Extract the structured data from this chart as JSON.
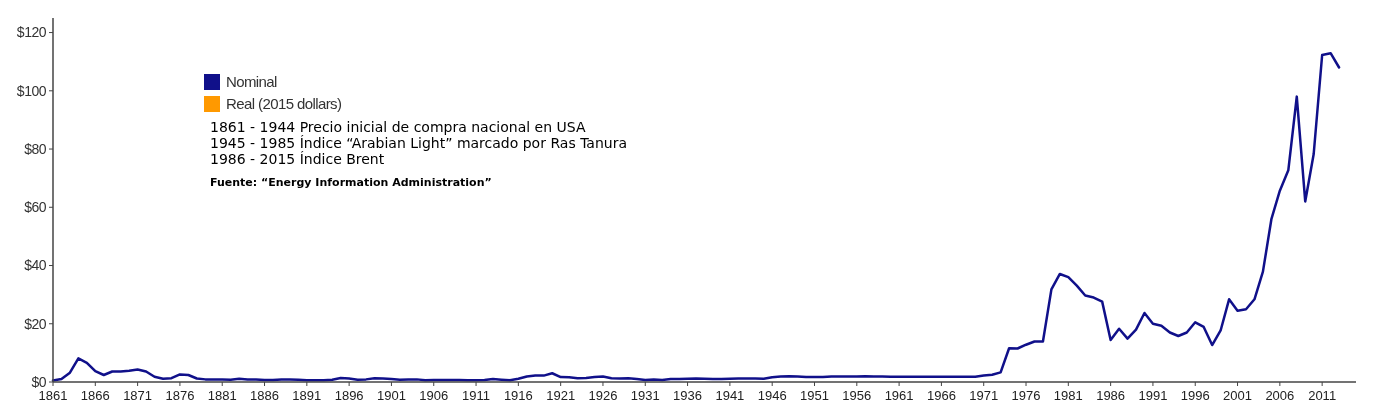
{
  "chart_data": {
    "type": "line",
    "x": [
      1861,
      1862,
      1863,
      1864,
      1865,
      1866,
      1867,
      1868,
      1869,
      1870,
      1871,
      1872,
      1873,
      1874,
      1875,
      1876,
      1877,
      1878,
      1879,
      1880,
      1881,
      1882,
      1883,
      1884,
      1885,
      1886,
      1887,
      1888,
      1889,
      1890,
      1891,
      1892,
      1893,
      1894,
      1895,
      1896,
      1897,
      1898,
      1899,
      1900,
      1901,
      1902,
      1903,
      1904,
      1905,
      1906,
      1907,
      1908,
      1909,
      1910,
      1911,
      1912,
      1913,
      1914,
      1915,
      1916,
      1917,
      1918,
      1919,
      1920,
      1921,
      1922,
      1923,
      1924,
      1925,
      1926,
      1927,
      1928,
      1929,
      1930,
      1931,
      1932,
      1933,
      1934,
      1935,
      1936,
      1937,
      1938,
      1939,
      1940,
      1941,
      1942,
      1943,
      1944,
      1945,
      1946,
      1947,
      1948,
      1949,
      1950,
      1951,
      1952,
      1953,
      1954,
      1955,
      1956,
      1957,
      1958,
      1959,
      1960,
      1961,
      1962,
      1963,
      1964,
      1965,
      1966,
      1967,
      1968,
      1969,
      1970,
      1971,
      1972,
      1973,
      1974,
      1975,
      1976,
      1977,
      1978,
      1979,
      1980,
      1981,
      1982,
      1983,
      1984,
      1985,
      1986,
      1987,
      1988,
      1989,
      1990,
      1991,
      1992,
      1993,
      1994,
      1995,
      1996,
      1997,
      1998,
      1999,
      2000,
      2001,
      2002,
      2003,
      2004,
      2005,
      2006,
      2007,
      2008,
      2009,
      2010,
      2011,
      2012,
      2013
    ],
    "series": [
      {
        "name": "Nominal",
        "color": "#10108a",
        "values": [
          0.5,
          1,
          3.2,
          8.1,
          6.6,
          3.7,
          2.4,
          3.6,
          3.6,
          3.9,
          4.3,
          3.6,
          1.8,
          1.1,
          1.3,
          2.6,
          2.4,
          1.2,
          0.9,
          0.9,
          0.9,
          0.8,
          1.1,
          0.9,
          0.9,
          0.7,
          0.7,
          0.9,
          0.9,
          0.8,
          0.6,
          0.6,
          0.6,
          0.8,
          1.4,
          1.2,
          0.8,
          0.9,
          1.3,
          1.2,
          1,
          0.8,
          0.9,
          0.9,
          0.6,
          0.7,
          0.7,
          0.7,
          0.7,
          0.6,
          0.6,
          0.7,
          1,
          0.8,
          0.6,
          1.1,
          1.9,
          2.2,
          2.2,
          3,
          1.7,
          1.6,
          1.3,
          1.4,
          1.7,
          1.9,
          1.3,
          1.2,
          1.3,
          1,
          0.65,
          0.87,
          0.67,
          1,
          1,
          1.1,
          1.2,
          1.1,
          1,
          1,
          1.1,
          1.2,
          1.2,
          1.2,
          1.1,
          1.6,
          1.9,
          2,
          1.9,
          1.7,
          1.7,
          1.7,
          1.9,
          1.9,
          1.9,
          1.9,
          2,
          1.9,
          1.9,
          1.8,
          1.8,
          1.8,
          1.8,
          1.8,
          1.8,
          1.8,
          1.8,
          1.8,
          1.8,
          1.8,
          2.2,
          2.5,
          3.3,
          11.6,
          11.5,
          12.8,
          13.9,
          13.9,
          31.8,
          37.1,
          36,
          33.1,
          29.7,
          29,
          27.6,
          14.4,
          18.3,
          14.9,
          18,
          23.7,
          20,
          19.3,
          17,
          15.8,
          17,
          20.5,
          18.9,
          12.7,
          17.7,
          28.4,
          24.5,
          25,
          28.4,
          37.9,
          55.9,
          65.7,
          72.7,
          98,
          62,
          78.3,
          112.3,
          112.9,
          108
        ]
      },
      {
        "name": "Real (2015 dollars)",
        "color": "#ff9900",
        "values": [
          null,
          null,
          null,
          null,
          null,
          null,
          null,
          null,
          null,
          null,
          null,
          null,
          null,
          null,
          null,
          null,
          null,
          null,
          null,
          null,
          null,
          null,
          null,
          null,
          null,
          null,
          null,
          null,
          null,
          null,
          null,
          null,
          null,
          null,
          null,
          null,
          null,
          null,
          null,
          null,
          null,
          null,
          null,
          null,
          null,
          null,
          null,
          null,
          null,
          null,
          null,
          null,
          null,
          null,
          null,
          null,
          null,
          null,
          null,
          null,
          null,
          null,
          null,
          null,
          null,
          null,
          null,
          null,
          null,
          null,
          null,
          null,
          null,
          null,
          null,
          null,
          null,
          null,
          null,
          null,
          null,
          null,
          null,
          null,
          null,
          null,
          null,
          null,
          null,
          null,
          null,
          null,
          null,
          null,
          null,
          null,
          null,
          null,
          null,
          null,
          null,
          null,
          null,
          null,
          null,
          null,
          null,
          null,
          null,
          null,
          null,
          null,
          null,
          null,
          null,
          null,
          null,
          null,
          null,
          null,
          null,
          null,
          null,
          null,
          null,
          null,
          null,
          null,
          null,
          null,
          null,
          null,
          null,
          null,
          null,
          null,
          null,
          null,
          null,
          null,
          null,
          null,
          null,
          null,
          null,
          null,
          null,
          null,
          null,
          null,
          null,
          null,
          null
        ]
      }
    ],
    "xlim": [
      1861,
      2015
    ],
    "xticks": [
      1861,
      1866,
      1871,
      1876,
      1881,
      1886,
      1891,
      1896,
      1901,
      1906,
      1911,
      1916,
      1921,
      1926,
      1931,
      1936,
      1941,
      1946,
      1951,
      1956,
      1961,
      1966,
      1971,
      1976,
      1981,
      1986,
      1991,
      1996,
      2001,
      2006,
      2011
    ],
    "ylim": [
      0,
      125
    ],
    "yticks": [
      {
        "value": 0,
        "label": "$0"
      },
      {
        "value": 20,
        "label": "$20"
      },
      {
        "value": 40,
        "label": "$40"
      },
      {
        "value": 60,
        "label": "$60"
      },
      {
        "value": 80,
        "label": "$80"
      },
      {
        "value": 100,
        "label": "$100"
      },
      {
        "value": 120,
        "label": "$120"
      }
    ],
    "legend": "top left",
    "grid": false,
    "annotations": [
      "1861 - 1944 Precio inicial de compra nacional en USA",
      "1945 - 1985 Índice “Arabian Light” marcado por Ras Tanura",
      "1986 - 2015 Índice Brent",
      "Fuente: “Energy Information Administration”"
    ]
  }
}
